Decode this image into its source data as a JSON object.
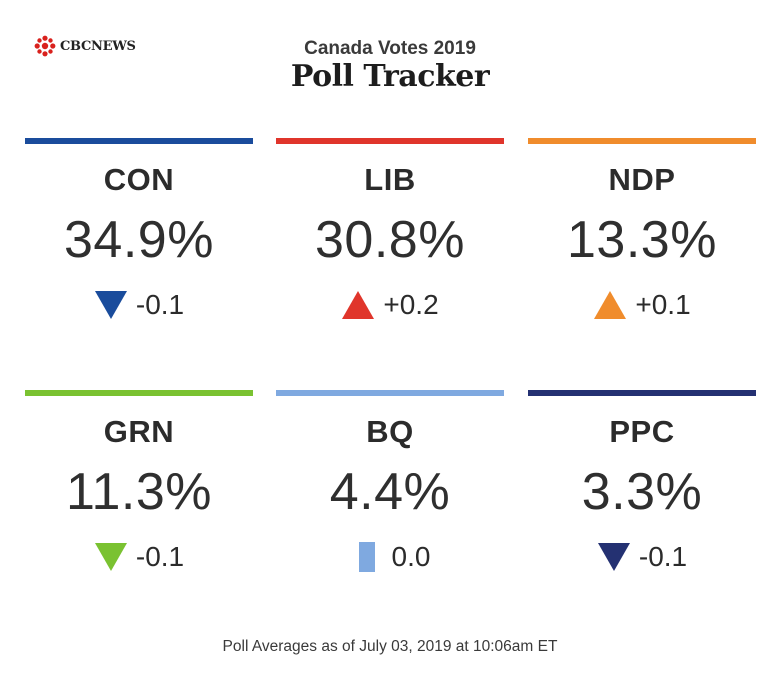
{
  "brand": {
    "logo_text": "CBCNEWS",
    "logo_color": "#d9211d"
  },
  "header": {
    "subtitle": "Canada Votes 2019",
    "title": "Poll Tracker"
  },
  "chart_data": {
    "type": "table",
    "title": "Poll Tracker",
    "subtitle": "Canada Votes 2019",
    "columns": [
      "party",
      "percent",
      "change"
    ],
    "rows": [
      {
        "party": "CON",
        "percent": 34.9,
        "percent_label": "34.9%",
        "change": -0.1,
        "change_label": "-0.1",
        "direction": "down",
        "color": "#1a4c9c"
      },
      {
        "party": "LIB",
        "percent": 30.8,
        "percent_label": "30.8%",
        "change": 0.2,
        "change_label": "+0.2",
        "direction": "up",
        "color": "#e0352b"
      },
      {
        "party": "NDP",
        "percent": 13.3,
        "percent_label": "13.3%",
        "change": 0.1,
        "change_label": "+0.1",
        "direction": "up",
        "color": "#f08c2c"
      },
      {
        "party": "GRN",
        "percent": 11.3,
        "percent_label": "11.3%",
        "change": -0.1,
        "change_label": "-0.1",
        "direction": "down",
        "color": "#7ac231"
      },
      {
        "party": "BQ",
        "percent": 4.4,
        "percent_label": "4.4%",
        "change": 0.0,
        "change_label": "0.0",
        "direction": "none",
        "color": "#7fa9e0"
      },
      {
        "party": "PPC",
        "percent": 3.3,
        "percent_label": "3.3%",
        "change": -0.1,
        "change_label": "-0.1",
        "direction": "down",
        "color": "#243172"
      }
    ]
  },
  "footer": {
    "note": "Poll Averages as of July 03, 2019 at 10:06am ET"
  }
}
